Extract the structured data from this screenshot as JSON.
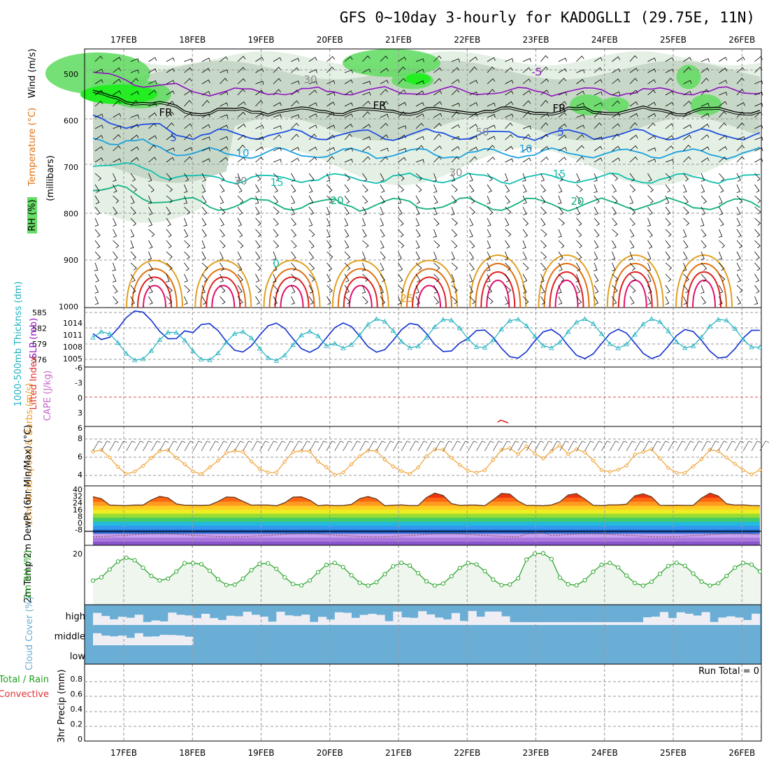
{
  "title": "GFS 0~10day 3-hourly for KADOGLLI (29.75E, 11N)",
  "colors": {
    "temp_blue": "#2050e0",
    "temp_cyan": "#1aa0e0",
    "temp_teal": "#10c0b0",
    "temp_green": "#10b080",
    "temp_orange": "#e0a020",
    "temp_dorange": "#e07010",
    "temp_red": "#e02020",
    "temp_magenta": "#e0106a",
    "temp_purple": "#9010c0",
    "slp": "#1030d0",
    "thickness": "#20b0c0",
    "wind10": "#f0a030",
    "rh2m": "#20a020",
    "rh2m_fill": "#eef6ee",
    "cloud": "#6aaed6",
    "rh_light": "#e4f0e4",
    "rh_mid": "#c8d8c8",
    "rh_green": "#66dd66",
    "rh_bright": "#22ee22"
  },
  "chart_data": [
    {
      "type": "line",
      "panel": "upper-air",
      "x": [
        "17FEB",
        "18FEB",
        "19FEB",
        "20FEB",
        "21FEB",
        "22FEB",
        "23FEB",
        "24FEB",
        "25FEB",
        "26FEB"
      ],
      "ylabel_rh": "RH (%)",
      "ylabel_temp": "Temperature (°C)",
      "ylabel_wind": "Wind (m/s)",
      "ylabel_units": "(millibars)",
      "ylim": [
        1000,
        450
      ],
      "yticks": [
        "500",
        "600",
        "700",
        "800",
        "900",
        "1000"
      ],
      "contour_labels": [
        "-5",
        "FR",
        "5",
        "10",
        "15",
        "20",
        "25",
        "30",
        "50",
        "0"
      ],
      "levels": [
        {
          "name": "-5",
          "pressure": 540
        },
        {
          "name": "0",
          "pressure": 580
        },
        {
          "name": "5",
          "pressure": 635
        },
        {
          "name": "10",
          "pressure": 675
        },
        {
          "name": "15",
          "pressure": 725
        },
        {
          "name": "20",
          "pressure": 775
        }
      ]
    },
    {
      "type": "line",
      "panel": "slp-thickness",
      "ylabel_left": "1000-500mb Thicknss (dm)",
      "ylabel_right": "SLP (mb)",
      "yticks_left": [
        "585",
        "582",
        "579",
        "576"
      ],
      "yticks_right": [
        "1014",
        "1011",
        "1008",
        "1005"
      ],
      "slp_range": [
        1004,
        1016
      ]
    },
    {
      "type": "line",
      "panel": "stability",
      "ylabel_left": "Lifted Index",
      "ylabel_right": "CAPE (J/kg)",
      "yticks": [
        "-6",
        "-3",
        "0",
        "3",
        "6"
      ]
    },
    {
      "type": "line",
      "panel": "wind10m",
      "ylabel": "10m Wind Speed & Barbs (m/s)",
      "yticks": [
        "8",
        "6",
        "4"
      ],
      "ylim": [
        3,
        9.5
      ]
    },
    {
      "type": "area",
      "panel": "temp2m",
      "ylabel": "2m Temp 2m DewPt (6hr Min/Max) (°C)",
      "yticks": [
        "40",
        "32",
        "24",
        "16",
        "8",
        "0",
        "-8"
      ],
      "ylim": [
        -14,
        42
      ]
    },
    {
      "type": "area",
      "panel": "rh2m",
      "ylabel": "2m RH (%)",
      "yticks": [
        "20"
      ],
      "ylim": [
        0,
        22
      ]
    },
    {
      "type": "bar",
      "panel": "cloud",
      "ylabel": "Cloud Cover (%)",
      "categories": [
        "high",
        "middle",
        "low"
      ]
    },
    {
      "type": "bar",
      "panel": "precip",
      "ylabel_top": "Total / Rain",
      "ylabel_mid": "Convective",
      "ylabel_units": "3hr Precip (mm)",
      "yticks": [
        "0.8",
        "0.6",
        "0.4",
        "0.2",
        "0"
      ],
      "run_total": "Run Total = 0"
    }
  ]
}
